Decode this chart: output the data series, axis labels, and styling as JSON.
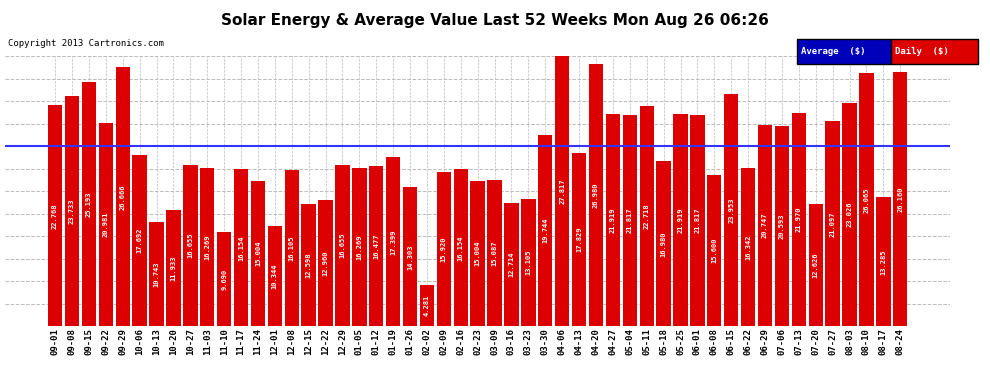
{
  "title": "Solar Energy & Average Value Last 52 Weeks Mon Aug 26 06:26",
  "copyright": "Copyright 2013 Cartronics.com",
  "average_label": "Average  ($)",
  "daily_label": "Daily  ($)",
  "ylim": [
    0,
    27.82
  ],
  "yticks": [
    0.0,
    2.32,
    4.64,
    6.95,
    9.27,
    11.59,
    13.91,
    16.23,
    18.54,
    20.86,
    23.18,
    25.5,
    27.82
  ],
  "average_line": 18.54,
  "bar_color": "#DD0000",
  "avg_line_color": "#3333FF",
  "background_color": "#FFFFFF",
  "plot_bg_color": "#FFFFFF",
  "grid_color": "#BBBBBB",
  "categories": [
    "09-01",
    "09-08",
    "09-15",
    "09-22",
    "09-29",
    "10-06",
    "10-13",
    "10-20",
    "10-27",
    "11-03",
    "11-10",
    "11-17",
    "11-24",
    "12-01",
    "12-08",
    "12-15",
    "12-22",
    "12-29",
    "01-05",
    "01-12",
    "01-19",
    "01-26",
    "02-02",
    "02-09",
    "02-16",
    "02-23",
    "03-09",
    "03-16",
    "03-23",
    "03-30",
    "04-06",
    "04-13",
    "04-20",
    "04-27",
    "05-04",
    "05-11",
    "05-18",
    "05-25",
    "06-01",
    "06-08",
    "06-15",
    "06-22",
    "06-29",
    "07-06",
    "07-13",
    "07-20",
    "07-27",
    "08-03",
    "08-10",
    "08-17",
    "08-24"
  ],
  "values": [
    22.768,
    23.733,
    25.193,
    20.981,
    26.666,
    17.692,
    10.743,
    11.933,
    16.655,
    16.269,
    9.69,
    16.154,
    15.004,
    10.344,
    16.105,
    12.598,
    12.96,
    16.655,
    16.269,
    16.477,
    17.399,
    14.303,
    4.281,
    15.92,
    16.154,
    15.004,
    15.087,
    12.714,
    13.105,
    19.744,
    27.817,
    17.829,
    26.98,
    21.919,
    21.817,
    22.718,
    16.98,
    21.919,
    21.817,
    15.6,
    23.953,
    16.342,
    20.747,
    20.593,
    21.97,
    12.626,
    21.097,
    23.026,
    26.065,
    13.285,
    26.16
  ],
  "title_fontsize": 11,
  "tick_fontsize": 6.5,
  "value_fontsize": 5.0,
  "ytick_fontsize": 7.5
}
